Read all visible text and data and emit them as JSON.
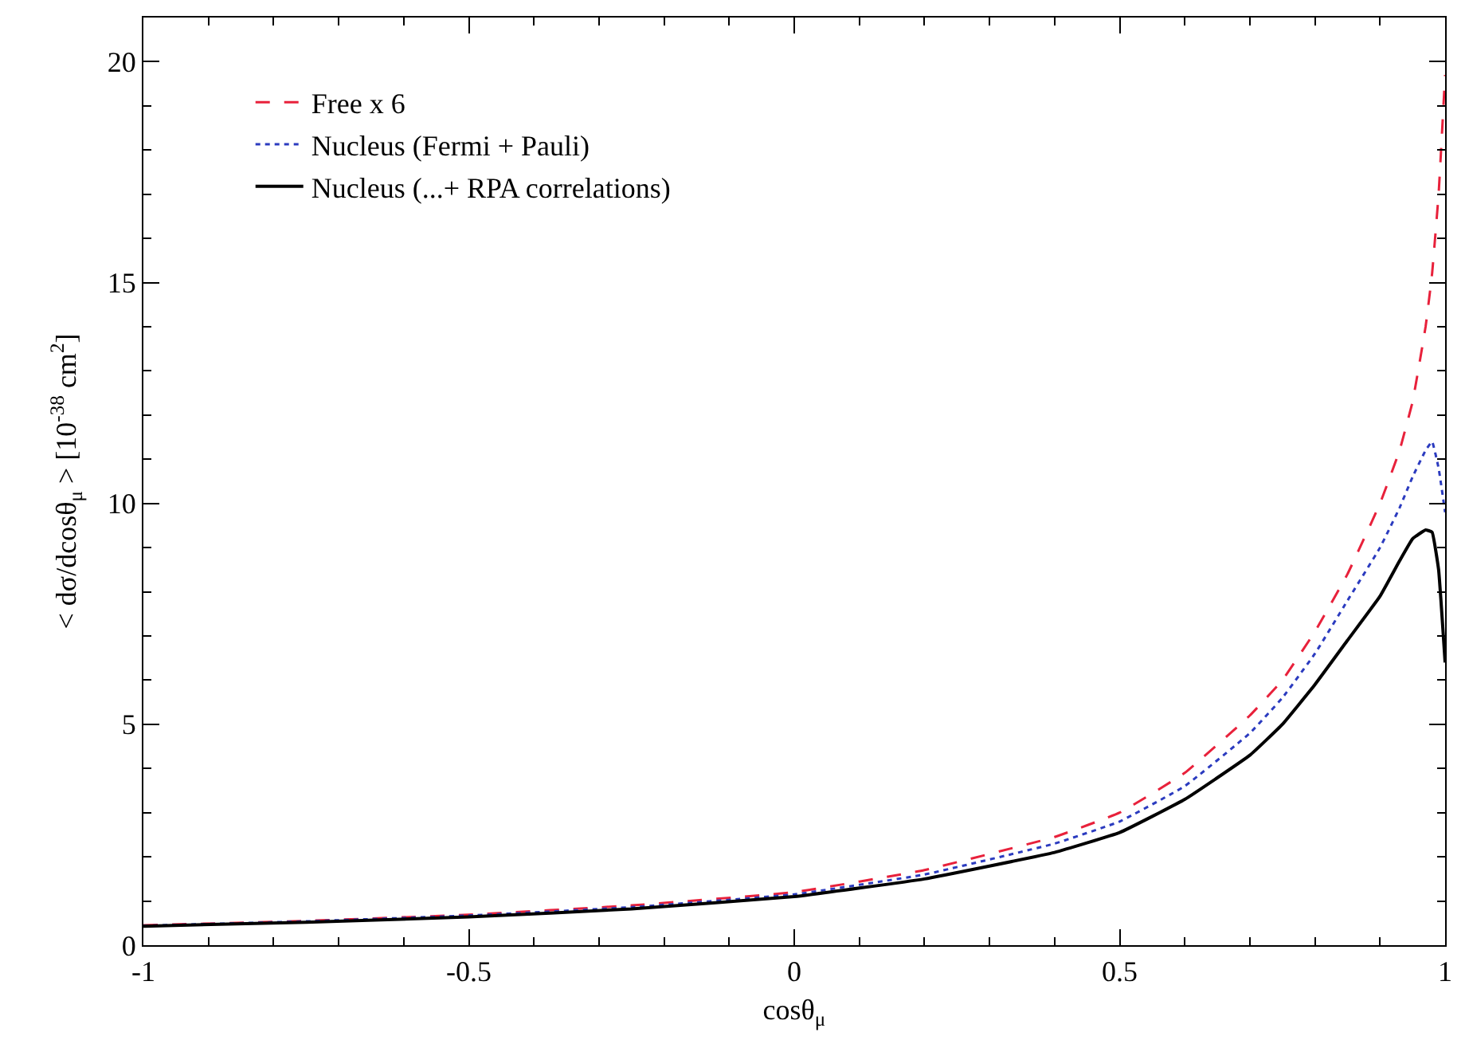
{
  "chart_data": {
    "type": "line",
    "xlabel": "cosθ$_{μ}$",
    "ylabel": "< dσ/dcosθ$_{μ}$ > [10$^{-38}$ cm$^{2}$]",
    "x": [
      -1,
      -0.75,
      -0.5,
      -0.25,
      0,
      0.2,
      0.4,
      0.5,
      0.6,
      0.7,
      0.75,
      0.8,
      0.85,
      0.9,
      0.93,
      0.95,
      0.97,
      0.98,
      0.99,
      1.0
    ],
    "series": [
      {
        "name": "Free x 6",
        "color": "#e8213b",
        "line_style": "dashed",
        "values": [
          0.45,
          0.55,
          0.69,
          0.9,
          1.2,
          1.7,
          2.45,
          3.0,
          3.9,
          5.2,
          6.0,
          7.1,
          8.4,
          10.0,
          11.2,
          12.3,
          14.0,
          15.2,
          17.0,
          19.7
        ]
      },
      {
        "name": "Nucleus (Fermi + Pauli)",
        "color": "#2b3bbf",
        "line_style": "dotted",
        "values": [
          0.44,
          0.54,
          0.67,
          0.86,
          1.15,
          1.6,
          2.3,
          2.8,
          3.6,
          4.8,
          5.6,
          6.6,
          7.8,
          9.0,
          9.9,
          10.6,
          11.2,
          11.4,
          10.8,
          9.8
        ]
      },
      {
        "name": "Nucleus (...+ RPA correlations)",
        "color": "#000000",
        "line_style": "solid",
        "values": [
          0.43,
          0.52,
          0.64,
          0.82,
          1.1,
          1.5,
          2.1,
          2.55,
          3.3,
          4.3,
          5.0,
          5.9,
          6.9,
          7.9,
          8.7,
          9.2,
          9.4,
          9.35,
          8.5,
          6.4
        ]
      }
    ],
    "xlim": [
      -1,
      1
    ],
    "xticks": [
      -1,
      {
        "value": -0.9,
        "label": null
      },
      {
        "value": -0.8,
        "label": null
      },
      {
        "value": -0.7,
        "label": null
      },
      {
        "value": -0.6,
        "label": null
      },
      -0.5,
      {
        "value": -0.4,
        "label": null
      },
      {
        "value": -0.3,
        "label": null
      },
      {
        "value": -0.2,
        "label": null
      },
      {
        "value": -0.1,
        "label": null
      },
      0,
      {
        "value": 0.1,
        "label": null
      },
      {
        "value": 0.2,
        "label": null
      },
      {
        "value": 0.3,
        "label": null
      },
      {
        "value": 0.4,
        "label": null
      },
      0.5,
      {
        "value": 0.6,
        "label": null
      },
      {
        "value": 0.7,
        "label": null
      },
      {
        "value": 0.8,
        "label": null
      },
      {
        "value": 0.9,
        "label": null
      },
      1
    ],
    "ylim": [
      0,
      21
    ],
    "yticks": [
      0,
      {
        "value": 1,
        "label": null
      },
      {
        "value": 2,
        "label": null
      },
      {
        "value": 3,
        "label": null
      },
      {
        "value": 4,
        "label": null
      },
      5,
      {
        "value": 6,
        "label": null
      },
      {
        "value": 7,
        "label": null
      },
      {
        "value": 8,
        "label": null
      },
      {
        "value": 9,
        "label": null
      },
      10,
      {
        "value": 11,
        "label": null
      },
      {
        "value": 12,
        "label": null
      },
      {
        "value": 13,
        "label": null
      },
      {
        "value": 14,
        "label": null
      },
      15,
      {
        "value": 16,
        "label": null
      },
      {
        "value": 17,
        "label": null
      },
      {
        "value": 18,
        "label": null
      },
      {
        "value": 19,
        "label": null
      },
      20,
      {
        "value": 21,
        "label": null
      }
    ],
    "legend": "top left",
    "marker": "none"
  }
}
